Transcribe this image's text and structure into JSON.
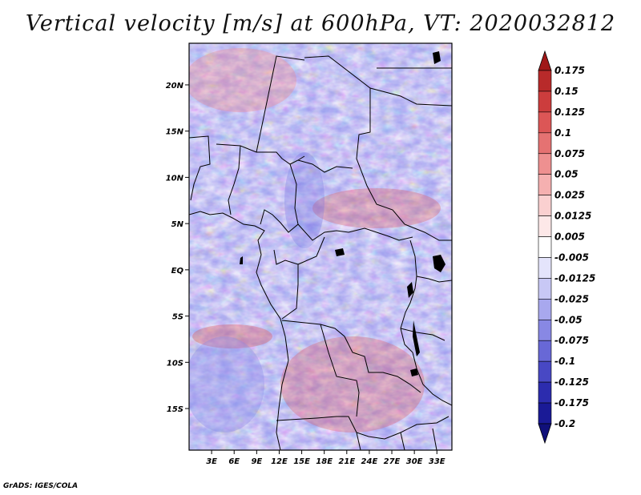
{
  "title": "Vertical velocity [m/s] at 600hPa, VT: 2020032812",
  "credit": "GrADS: IGES/COLA",
  "map": {
    "lat_labels": [
      "20N",
      "15N",
      "10N",
      "5N",
      "EQ",
      "5S",
      "10S",
      "15S"
    ],
    "lat_values": [
      20,
      15,
      10,
      5,
      0,
      -5,
      -10,
      -15
    ],
    "lon_labels": [
      "3E",
      "6E",
      "9E",
      "12E",
      "15E",
      "18E",
      "21E",
      "24E",
      "27E",
      "30E",
      "33E"
    ],
    "lon_values": [
      3,
      6,
      9,
      12,
      15,
      18,
      21,
      24,
      27,
      30,
      33
    ],
    "lon_range": [
      0,
      35
    ],
    "lat_range": [
      -19.5,
      24.5
    ]
  },
  "colorbar": {
    "labels": [
      "0.175",
      "0.15",
      "0.125",
      "0.1",
      "0.075",
      "0.05",
      "0.025",
      "0.0125",
      "0.005",
      "-0.005",
      "-0.0125",
      "-0.025",
      "-0.05",
      "-0.075",
      "-0.1",
      "-0.125",
      "-0.175",
      "-0.2"
    ],
    "colors": [
      "#a01818",
      "#b82a2a",
      "#cc3d3d",
      "#dc5656",
      "#e57272",
      "#ee9090",
      "#f5b0b0",
      "#fad0d0",
      "#fde8e8",
      "#ffffff",
      "#e4e4fb",
      "#c8c8f5",
      "#a8a8ee",
      "#8888e4",
      "#6868d6",
      "#4848c4",
      "#2c2cae",
      "#1a1a96",
      "#10107a"
    ],
    "icon": "triangle-arrow-ends"
  }
}
